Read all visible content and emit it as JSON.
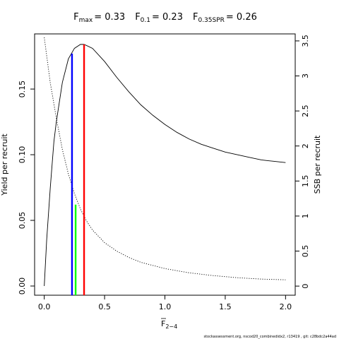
{
  "chart_data": {
    "type": "line",
    "title_parts": [
      {
        "symbol": "F",
        "subscript": "max",
        "value": "= 0.33"
      },
      {
        "symbol": "F",
        "subscript": "0.1",
        "value": "= 0.23"
      },
      {
        "symbol": "F",
        "subscript": "0.35SPR",
        "value": "= 0.26"
      }
    ],
    "xlabel": {
      "main": "F",
      "subscript": "2−4",
      "overline": true
    },
    "ylabel_left": "Yield per recruit",
    "ylabel_right": "SSB per recruit",
    "xlim": [
      -0.08,
      2.08
    ],
    "ylim_left": [
      -0.007,
      0.192
    ],
    "ylim_right": [
      -0.13,
      3.6
    ],
    "x_ticks": [
      0,
      0.5,
      1,
      1.5,
      2
    ],
    "x_tick_labels": [
      "0.0",
      "0.5",
      "1.0",
      "1.5",
      "2.0"
    ],
    "y_left_ticks": [
      0,
      0.05,
      0.1,
      0.15
    ],
    "y_left_tick_labels": [
      "0.00",
      "0.05",
      "0.10",
      "0.15"
    ],
    "y_right_ticks": [
      0,
      0.5,
      1,
      1.5,
      2,
      2.5,
      3,
      3.5
    ],
    "y_right_tick_labels": [
      "0",
      "0.5",
      "1",
      "1.5",
      "2",
      "2.5",
      "3",
      "3.5"
    ],
    "series": [
      {
        "name": "Yield per recruit",
        "axis": "left",
        "style": "solid",
        "color": "#000000",
        "x": [
          0,
          0.02,
          0.05,
          0.08,
          0.1,
          0.15,
          0.2,
          0.25,
          0.3,
          0.33,
          0.4,
          0.5,
          0.6,
          0.7,
          0.8,
          0.9,
          1.0,
          1.1,
          1.2,
          1.3,
          1.4,
          1.5,
          1.6,
          1.7,
          1.8,
          1.9,
          2.0
        ],
        "y": [
          0,
          0.035,
          0.075,
          0.11,
          0.125,
          0.155,
          0.173,
          0.181,
          0.184,
          0.184,
          0.181,
          0.171,
          0.159,
          0.148,
          0.138,
          0.13,
          0.123,
          0.117,
          0.112,
          0.108,
          0.105,
          0.102,
          0.1,
          0.098,
          0.096,
          0.095,
          0.094
        ]
      },
      {
        "name": "SSB per recruit",
        "axis": "right",
        "style": "dotted",
        "color": "#000000",
        "x": [
          0,
          0.05,
          0.1,
          0.15,
          0.2,
          0.25,
          0.3,
          0.35,
          0.4,
          0.5,
          0.6,
          0.7,
          0.8,
          1.0,
          1.2,
          1.4,
          1.6,
          1.8,
          2.0
        ],
        "y": [
          3.55,
          2.9,
          2.4,
          1.95,
          1.6,
          1.32,
          1.1,
          0.93,
          0.8,
          0.62,
          0.5,
          0.41,
          0.34,
          0.25,
          0.19,
          0.15,
          0.12,
          0.1,
          0.09
        ]
      }
    ],
    "reference_lines": [
      {
        "name": "F0.1",
        "x": 0.23,
        "y": 0.177,
        "color": "#0000ff"
      },
      {
        "name": "F0.35SPR",
        "x": 0.26,
        "y": 0.062,
        "color": "#00ff00"
      },
      {
        "name": "Fmax",
        "x": 0.33,
        "y": 0.184,
        "color": "#ff0000"
      }
    ],
    "footer_note": "stockassessment.org, nscod20_combinedidx2, r13419 , git: c28bdc2a44ad"
  }
}
